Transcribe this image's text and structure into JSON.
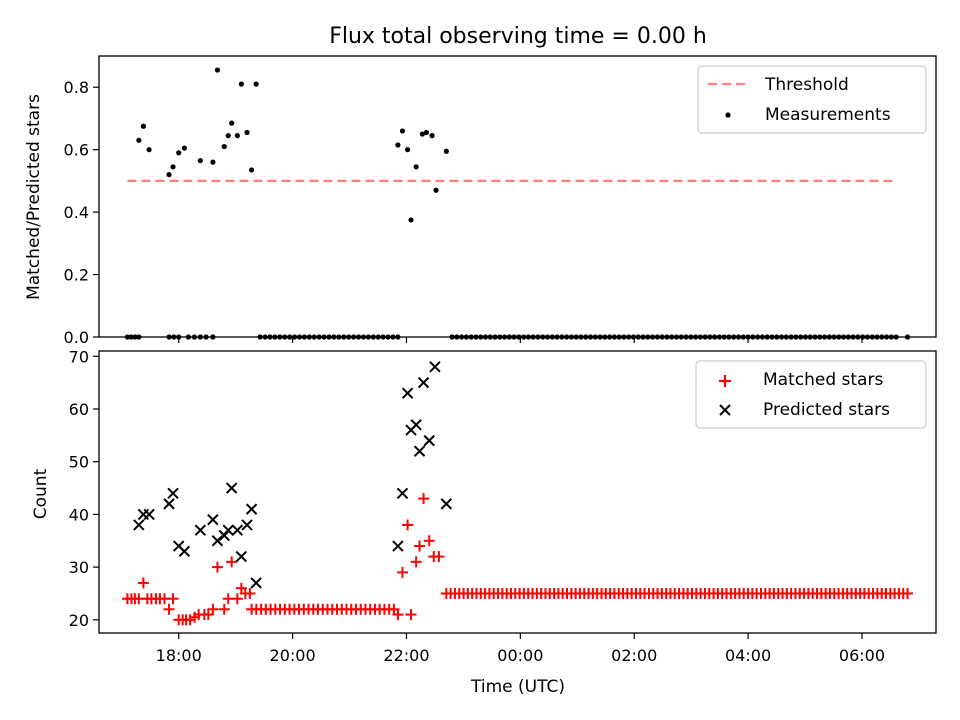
{
  "title": "Flux total observing time = 0.00 h",
  "chart_data": [
    {
      "type": "scatter",
      "ylabel": "Matched/Predicted stars",
      "ylim": [
        0,
        0.9
      ],
      "yticks": [
        "0.0",
        "0.2",
        "0.4",
        "0.6",
        "0.8"
      ],
      "xlim": [
        16.6,
        31.3
      ],
      "xticks": [
        18,
        20,
        22,
        24,
        26,
        28,
        30
      ],
      "legend": {
        "location": "upper right",
        "entries": [
          "Threshold",
          "Measurements"
        ]
      },
      "threshold": {
        "name": "Threshold",
        "value": 0.5,
        "x_range": [
          17.1,
          30.6
        ],
        "color": "#ff7f7f",
        "style": "dashed"
      },
      "measurements": {
        "name": "Measurements",
        "color": "#000000",
        "points": [
          [
            17.3,
            0.63
          ],
          [
            17.38,
            0.675
          ],
          [
            17.48,
            0.6
          ],
          [
            17.83,
            0.52
          ],
          [
            17.9,
            0.545
          ],
          [
            18.0,
            0.59
          ],
          [
            18.1,
            0.605
          ],
          [
            18.38,
            0.565
          ],
          [
            18.6,
            0.56
          ],
          [
            18.68,
            0.855
          ],
          [
            18.8,
            0.61
          ],
          [
            18.87,
            0.645
          ],
          [
            18.93,
            0.685
          ],
          [
            19.03,
            0.645
          ],
          [
            19.1,
            0.81
          ],
          [
            19.2,
            0.655
          ],
          [
            19.28,
            0.535
          ],
          [
            19.36,
            0.81
          ],
          [
            21.85,
            0.615
          ],
          [
            21.93,
            0.66
          ],
          [
            22.02,
            0.6
          ],
          [
            22.08,
            0.375
          ],
          [
            22.17,
            0.545
          ],
          [
            22.28,
            0.65
          ],
          [
            22.35,
            0.655
          ],
          [
            22.45,
            0.645
          ],
          [
            22.52,
            0.47
          ],
          [
            22.7,
            0.595
          ]
        ],
        "zero_segments": [
          {
            "start": 17.1,
            "end": 17.3,
            "count": 4
          },
          {
            "start": 17.83,
            "end": 18.0,
            "count": 3
          },
          {
            "start": 18.17,
            "end": 18.38,
            "count": 3
          },
          {
            "start": 18.48,
            "end": 18.6,
            "count": 2
          },
          {
            "start": 19.43,
            "end": 21.85,
            "count": 29
          },
          {
            "start": 22.8,
            "end": 30.6,
            "count": 94
          },
          {
            "start": 30.8,
            "end": 30.8,
            "count": 1
          }
        ]
      }
    },
    {
      "type": "scatter",
      "xlabel": "Time (UTC)",
      "ylabel": "Count",
      "ylim": [
        17.5,
        71
      ],
      "yticks": [
        "20",
        "30",
        "40",
        "50",
        "60",
        "70"
      ],
      "xlim": [
        16.6,
        31.3
      ],
      "xticks": [
        18,
        20,
        22,
        24,
        26,
        28,
        30
      ],
      "xtick_labels": [
        "18:00",
        "20:00",
        "22:00",
        "00:00",
        "02:00",
        "04:00",
        "06:00"
      ],
      "legend": {
        "location": "upper right",
        "entries": [
          "Matched stars",
          "Predicted stars"
        ]
      },
      "series": [
        {
          "name": "Matched stars",
          "marker": "+",
          "color": "#ff0000",
          "points": [
            [
              17.1,
              24
            ],
            [
              17.17,
              24
            ],
            [
              17.23,
              24
            ],
            [
              17.3,
              24
            ],
            [
              17.38,
              27
            ],
            [
              17.45,
              24
            ],
            [
              17.52,
              24
            ],
            [
              17.6,
              24
            ],
            [
              17.67,
              24
            ],
            [
              17.75,
              24
            ],
            [
              17.83,
              22
            ],
            [
              17.9,
              24
            ],
            [
              18.0,
              20
            ],
            [
              18.07,
              20
            ],
            [
              18.13,
              20
            ],
            [
              18.2,
              20
            ],
            [
              18.28,
              20.5
            ],
            [
              18.35,
              21
            ],
            [
              18.45,
              21
            ],
            [
              18.52,
              21
            ],
            [
              18.6,
              22
            ],
            [
              18.68,
              30
            ],
            [
              18.8,
              22
            ],
            [
              18.87,
              24
            ],
            [
              18.93,
              31
            ],
            [
              19.03,
              24
            ],
            [
              19.1,
              26
            ],
            [
              19.17,
              25
            ],
            [
              19.25,
              25
            ],
            [
              21.85,
              21
            ],
            [
              21.93,
              29
            ],
            [
              22.02,
              38
            ],
            [
              22.08,
              21
            ],
            [
              22.17,
              31
            ],
            [
              22.23,
              34
            ],
            [
              22.3,
              43
            ],
            [
              22.4,
              35
            ],
            [
              22.48,
              32
            ],
            [
              22.57,
              32
            ]
          ],
          "constant_segments": [
            {
              "start": 19.28,
              "end": 21.78,
              "count": 31,
              "value": 22
            },
            {
              "start": 22.7,
              "end": 30.8,
              "count": 108,
              "value": 25
            }
          ]
        },
        {
          "name": "Predicted stars",
          "marker": "x",
          "color": "#000000",
          "points": [
            [
              17.3,
              38
            ],
            [
              17.38,
              40
            ],
            [
              17.48,
              40
            ],
            [
              17.83,
              42
            ],
            [
              17.9,
              44
            ],
            [
              18.0,
              34
            ],
            [
              18.1,
              33
            ],
            [
              18.38,
              37
            ],
            [
              18.6,
              39
            ],
            [
              18.68,
              35
            ],
            [
              18.8,
              36
            ],
            [
              18.87,
              37
            ],
            [
              18.93,
              45
            ],
            [
              19.03,
              37
            ],
            [
              19.1,
              32
            ],
            [
              19.2,
              38
            ],
            [
              19.28,
              41
            ],
            [
              19.36,
              27
            ],
            [
              21.85,
              34
            ],
            [
              21.93,
              44
            ],
            [
              22.02,
              63
            ],
            [
              22.08,
              56
            ],
            [
              22.17,
              57
            ],
            [
              22.23,
              52
            ],
            [
              22.3,
              65
            ],
            [
              22.4,
              54
            ],
            [
              22.5,
              68
            ],
            [
              22.7,
              42
            ]
          ]
        }
      ]
    }
  ]
}
